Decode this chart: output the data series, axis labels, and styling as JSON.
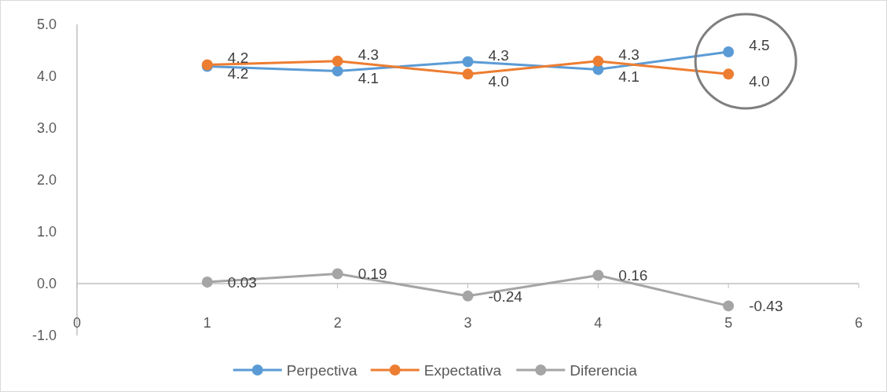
{
  "chart_data": {
    "type": "line",
    "x": [
      1,
      2,
      3,
      4,
      5
    ],
    "xlim": [
      0,
      6
    ],
    "xticks": [
      0,
      1,
      2,
      3,
      4,
      5,
      6
    ],
    "ylim": [
      -1,
      5
    ],
    "yticks": [
      {
        "value": -1,
        "label": "-1.0"
      },
      {
        "value": 0,
        "label": "0.0"
      },
      {
        "value": 1,
        "label": "1.0"
      },
      {
        "value": 2,
        "label": "2.0"
      },
      {
        "value": 3,
        "label": "3.0"
      },
      {
        "value": 4,
        "label": "4.0"
      },
      {
        "value": 5,
        "label": "5.0"
      }
    ],
    "series": [
      {
        "name": "Perpectiva",
        "color": "#5b9bd5",
        "values": [
          4.19,
          4.1,
          4.28,
          4.13,
          4.47
        ],
        "value_labels": [
          "4.2",
          "4.1",
          "4.3",
          "4.1",
          "4.5"
        ]
      },
      {
        "name": "Expectativa",
        "color": "#ed7d31",
        "values": [
          4.22,
          4.29,
          4.04,
          4.29,
          4.04
        ],
        "value_labels": [
          "4.2",
          "4.3",
          "4.0",
          "4.3",
          "4.0"
        ]
      },
      {
        "name": "Diferencia",
        "color": "#a5a5a5",
        "values": [
          0.03,
          0.19,
          -0.24,
          0.16,
          -0.43
        ],
        "value_labels": [
          "0.03",
          "0.19",
          "-0.24",
          "0.16",
          "-0.43"
        ]
      }
    ],
    "marker": "circle",
    "line_style": "solid",
    "legend": "bottom",
    "grid": false
  }
}
